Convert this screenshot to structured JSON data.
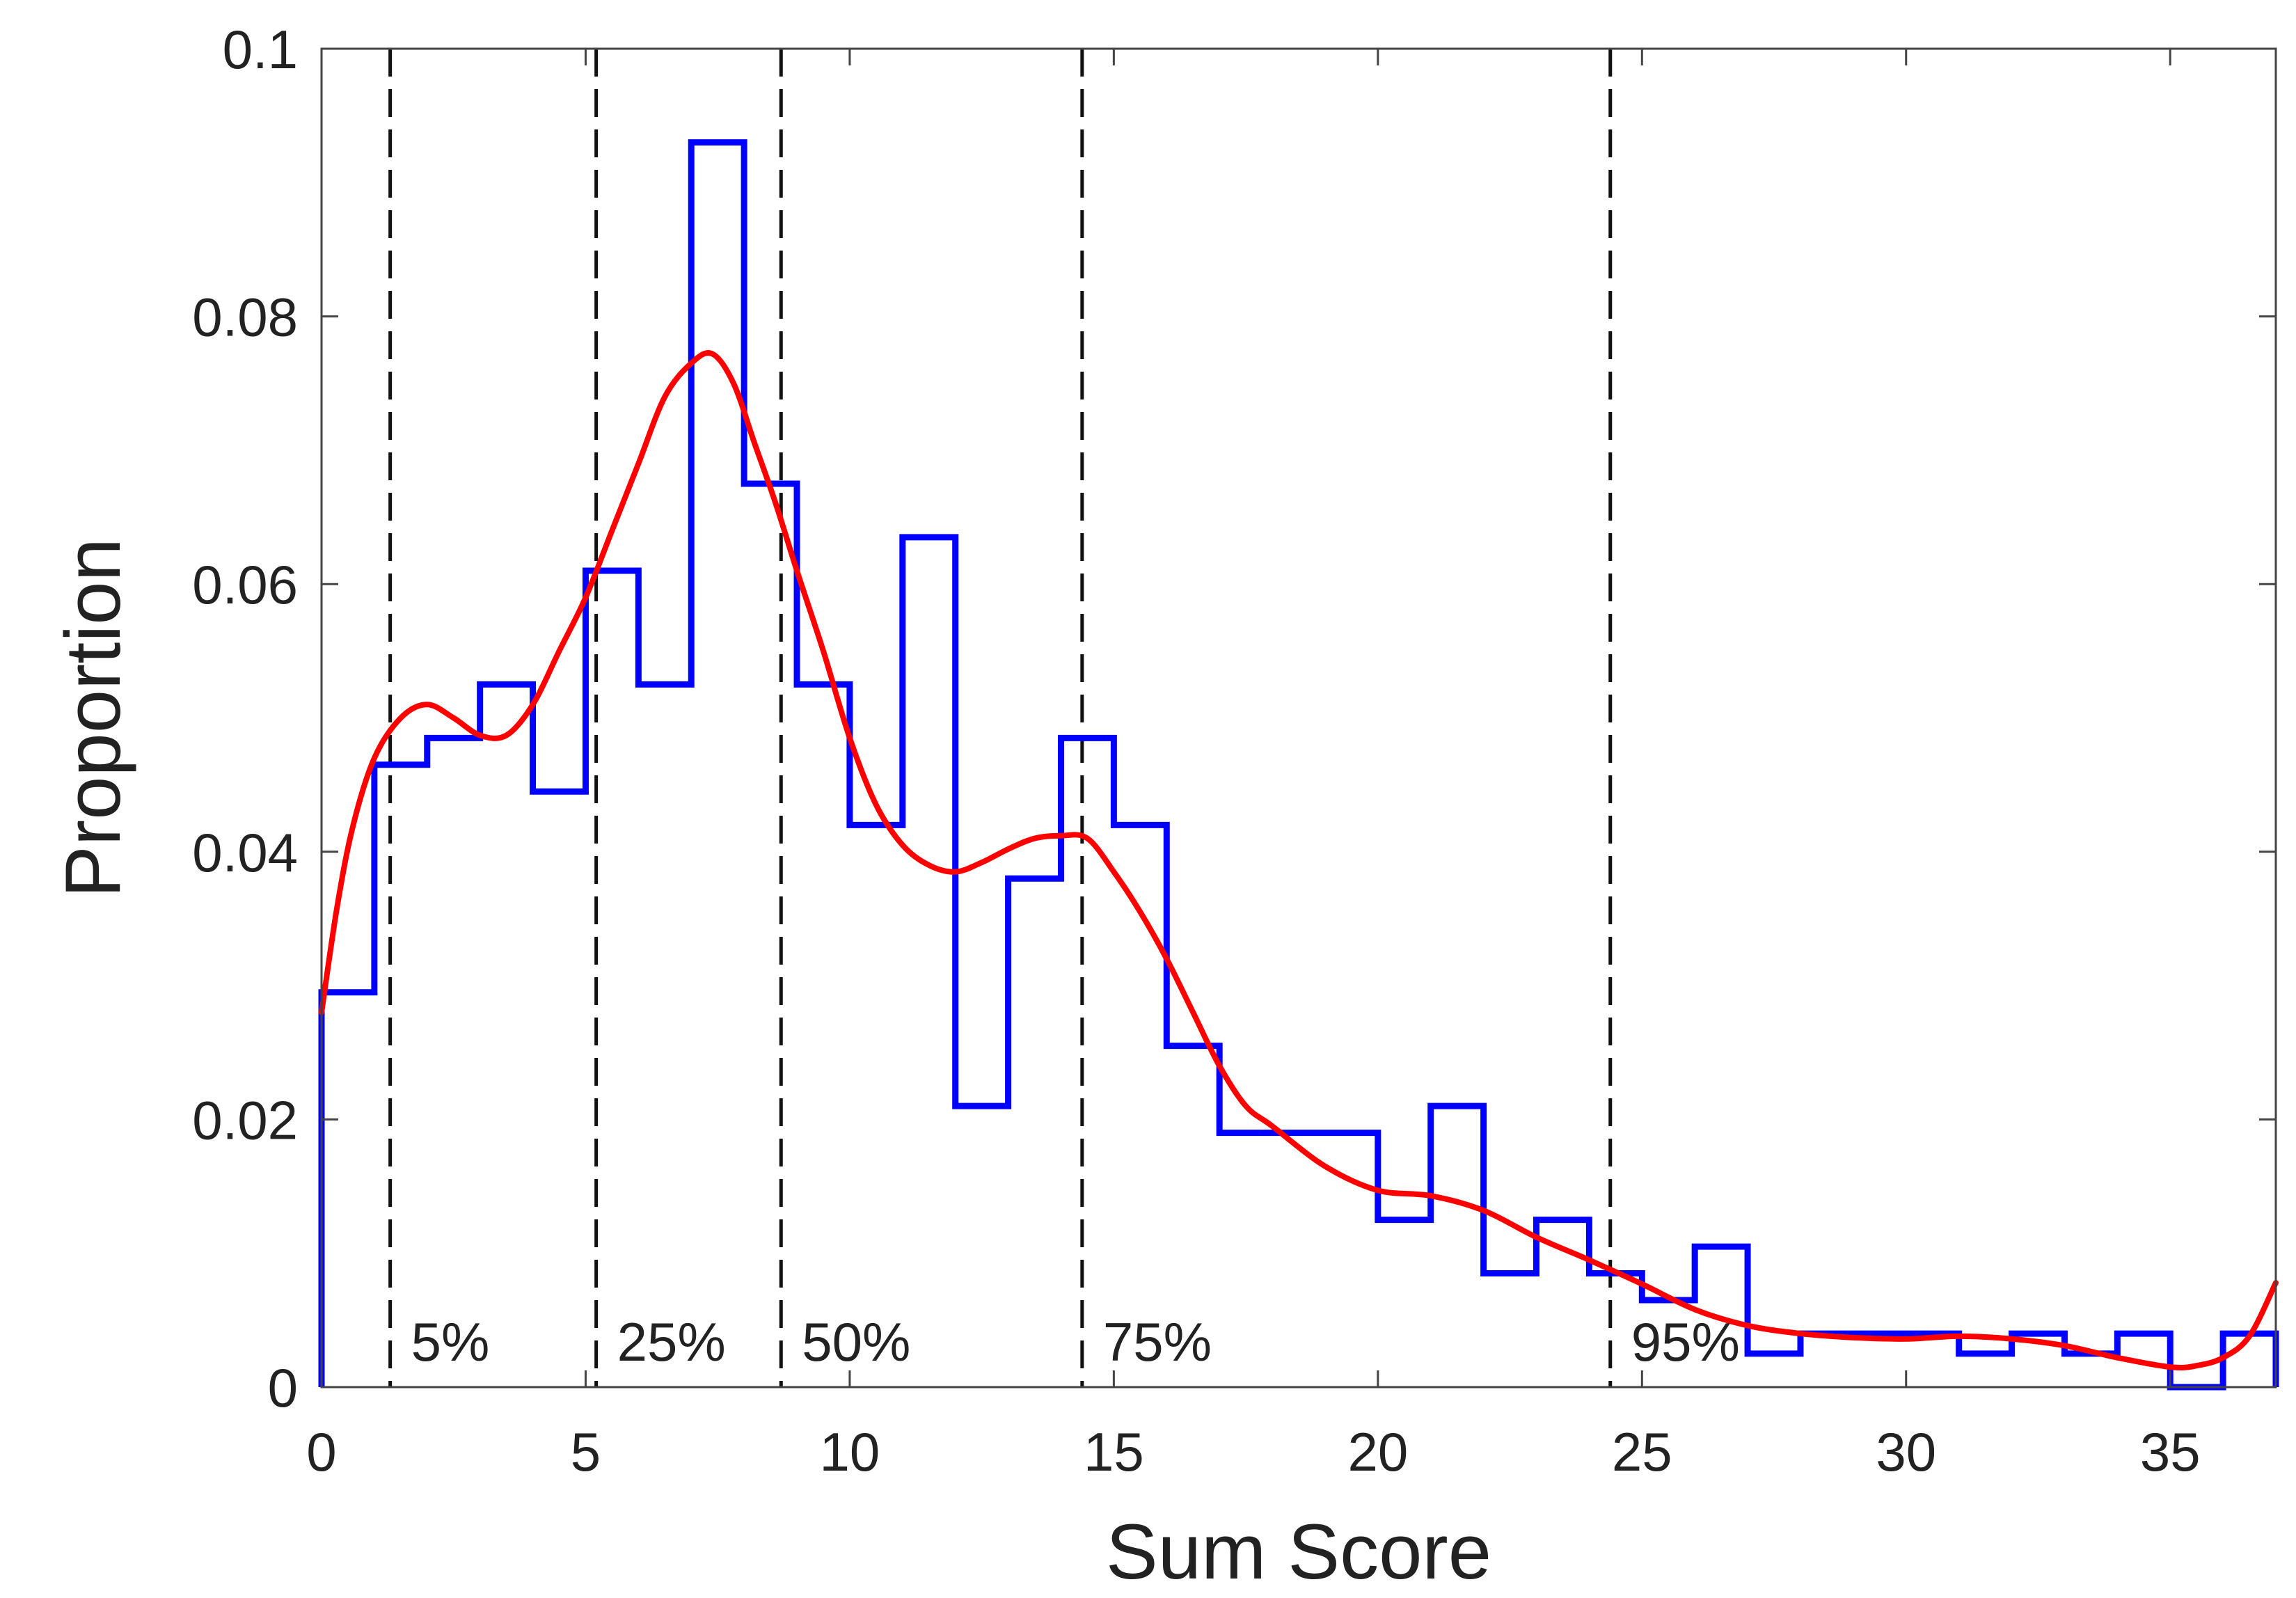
{
  "chart_data": {
    "type": "histogram",
    "xlabel": "Sum Score",
    "ylabel": "Proportion",
    "xlim": [
      0,
      37
    ],
    "ylim": [
      0,
      0.1
    ],
    "xticks": [
      0,
      5,
      10,
      15,
      20,
      25,
      30,
      35
    ],
    "yticks": [
      0,
      0.02,
      0.04,
      0.06,
      0.08,
      0.1
    ],
    "ytick_labels": [
      "0",
      "0.02",
      "0.04",
      "0.06",
      "0.08",
      "0.1"
    ],
    "grid": false,
    "histogram": {
      "color": "#0000ff",
      "bin_edges": [
        0,
        1,
        2,
        3,
        4,
        5,
        6,
        7,
        8,
        9,
        10,
        11,
        12,
        13,
        14,
        15,
        16,
        17,
        18,
        19,
        20,
        21,
        22,
        23,
        24,
        25,
        26,
        27,
        28,
        29,
        30,
        31,
        32,
        33,
        34,
        35,
        36,
        37
      ],
      "values": [
        0.0295,
        0.0465,
        0.0485,
        0.0525,
        0.0445,
        0.061,
        0.0525,
        0.093,
        0.0675,
        0.0525,
        0.042,
        0.0635,
        0.021,
        0.038,
        0.0485,
        0.042,
        0.0255,
        0.019,
        0.019,
        0.019,
        0.0125,
        0.021,
        0.0085,
        0.0125,
        0.0085,
        0.0065,
        0.0105,
        0.0025,
        0.004,
        0.004,
        0.004,
        0.0025,
        0.004,
        0.0025,
        0.004,
        0.0,
        0.004
      ]
    },
    "density": {
      "color": "#ff0000",
      "x": [
        0,
        0.3,
        0.6,
        1,
        1.5,
        2,
        2.5,
        3,
        3.5,
        4,
        4.5,
        5,
        5.5,
        6,
        6.5,
        7,
        7.4,
        7.8,
        8.2,
        8.6,
        9,
        9.5,
        10,
        10.5,
        11,
        11.5,
        12,
        12.5,
        13,
        13.5,
        14,
        14.5,
        15,
        15.5,
        16,
        16.5,
        17,
        17.5,
        18,
        19,
        20,
        21,
        22,
        23,
        24,
        25,
        26,
        27,
        28,
        29,
        30,
        31,
        32,
        33,
        34,
        35,
        35.5,
        36,
        36.5,
        37
      ],
      "y": [
        0.028,
        0.036,
        0.042,
        0.047,
        0.05,
        0.051,
        0.05,
        0.0487,
        0.0487,
        0.051,
        0.055,
        0.059,
        0.064,
        0.069,
        0.074,
        0.0765,
        0.0772,
        0.075,
        0.0705,
        0.066,
        0.061,
        0.055,
        0.0485,
        0.0435,
        0.0405,
        0.039,
        0.0385,
        0.0392,
        0.0402,
        0.041,
        0.0412,
        0.041,
        0.0385,
        0.0355,
        0.032,
        0.028,
        0.024,
        0.021,
        0.0195,
        0.0165,
        0.0147,
        0.0143,
        0.0132,
        0.0112,
        0.0095,
        0.0077,
        0.0058,
        0.0046,
        0.004,
        0.0037,
        0.0036,
        0.0038,
        0.0036,
        0.0031,
        0.0022,
        0.0015,
        0.0016,
        0.0022,
        0.0038,
        0.0078
      ]
    },
    "percentile_lines": [
      {
        "x": 1.3,
        "label": "5%"
      },
      {
        "x": 5.2,
        "label": "25%"
      },
      {
        "x": 8.7,
        "label": "50%"
      },
      {
        "x": 14.4,
        "label": "75%"
      },
      {
        "x": 24.4,
        "label": "95%"
      }
    ]
  }
}
